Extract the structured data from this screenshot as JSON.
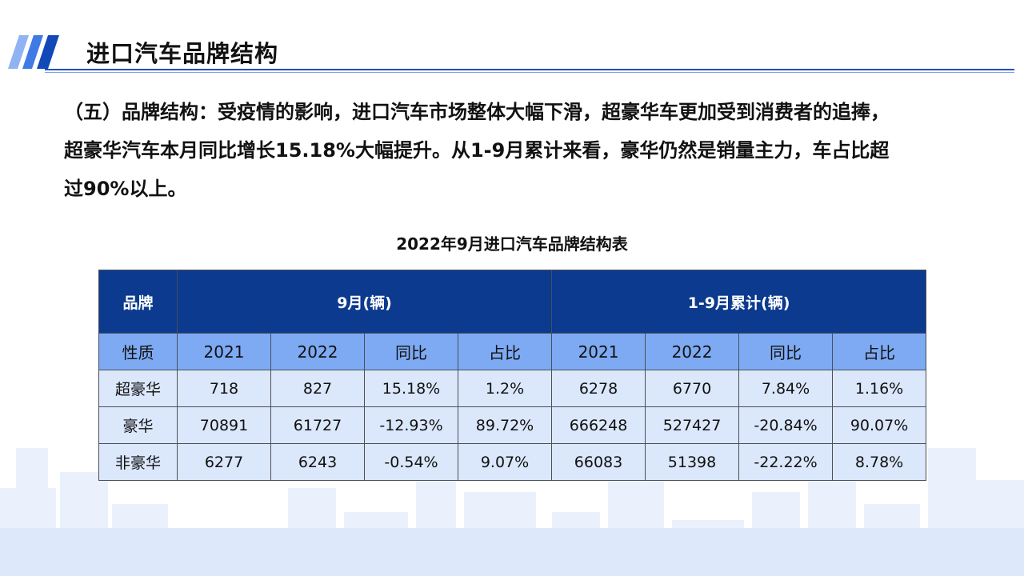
{
  "header": {
    "title": "进口汽车品牌结构"
  },
  "paragraph": {
    "lines": [
      "（五）品牌结构：受疫情的影响，进口汽车市场整体大幅下滑，超豪华车更加受到消费者的追捧，",
      "超豪华汽车本月同比增长15.18%大幅提升。从1-9月累计来看，豪华仍然是销量主力，车占比超",
      "过90%以上。"
    ]
  },
  "table": {
    "title": "2022年9月进口汽车品牌结构表",
    "header_row1": {
      "brand": "品牌",
      "month_group": "9月(辆)",
      "ytd_group": "1-9月累计(辆)"
    },
    "header_row2": [
      "性质",
      "2021",
      "2022",
      "同比",
      "占比",
      "2021",
      "2022",
      "同比",
      "占比"
    ],
    "rows": [
      [
        "超豪华",
        "718",
        "827",
        "15.18%",
        "1.2%",
        "6278",
        "6770",
        "7.84%",
        "1.16%"
      ],
      [
        "豪华",
        "70891",
        "61727",
        "-12.93%",
        "89.72%",
        "666248",
        "527427",
        "-20.84%",
        "90.07%"
      ],
      [
        "非豪华",
        "6277",
        "6243",
        "-0.54%",
        "9.07%",
        "66083",
        "51398",
        "-22.22%",
        "8.78%"
      ]
    ]
  },
  "colors": {
    "header_dark": "#0b3a8e",
    "header_light": "#7daaf3",
    "row_bg": "#dbe7fb",
    "title_rule": "#1f4fbf",
    "skyline": "#e3edfc"
  }
}
